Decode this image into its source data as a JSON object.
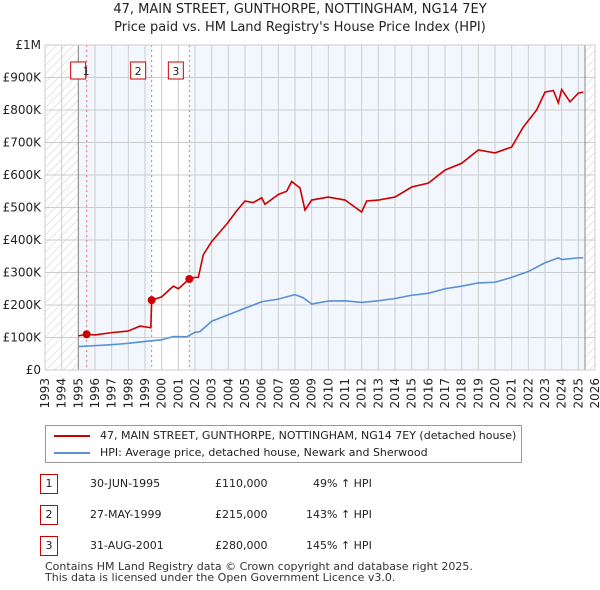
{
  "chart_data": {
    "type": "line",
    "title": "47, MAIN STREET, GUNTHORPE, NOTTINGHAM, NG14 7EY",
    "subtitle": "Price paid vs. HM Land Registry's House Price Index (HPI)",
    "xlim": [
      1993,
      2026
    ],
    "ylim": [
      0,
      1000000
    ],
    "x_ticks": [
      "1993",
      "1994",
      "1995",
      "1996",
      "1997",
      "1998",
      "1999",
      "2000",
      "2001",
      "2002",
      "2003",
      "2004",
      "2005",
      "2006",
      "2007",
      "2008",
      "2009",
      "2010",
      "2011",
      "2012",
      "2013",
      "2014",
      "2015",
      "2016",
      "2017",
      "2018",
      "2019",
      "2020",
      "2021",
      "2022",
      "2023",
      "2024",
      "2025",
      "2026"
    ],
    "y_ticks": [
      {
        "v": 0,
        "label": "£0"
      },
      {
        "v": 100000,
        "label": "£100K"
      },
      {
        "v": 200000,
        "label": "£200K"
      },
      {
        "v": 300000,
        "label": "£300K"
      },
      {
        "v": 400000,
        "label": "£400K"
      },
      {
        "v": 500000,
        "label": "£500K"
      },
      {
        "v": 600000,
        "label": "£600K"
      },
      {
        "v": 700000,
        "label": "£700K"
      },
      {
        "v": 800000,
        "label": "£800K"
      },
      {
        "v": 900000,
        "label": "£900K"
      },
      {
        "v": 1000000,
        "label": "£1M"
      }
    ],
    "grid": true,
    "series": [
      {
        "name": "47, MAIN STREET, GUNTHORPE, NOTTINGHAM, NG14 7EY (detached house)",
        "color": "#cc0000",
        "x": [
          1995.0,
          1995.5,
          1996,
          1997,
          1998,
          1998.7,
          1999.35,
          1999.4,
          2000,
          2000.7,
          2001,
          2001.66,
          2002,
          2002.2,
          2002.5,
          2003,
          2003.5,
          2004,
          2004.5,
          2005,
          2005.5,
          2006,
          2006.2,
          2007,
          2007.5,
          2007.8,
          2008.3,
          2008.6,
          2009,
          2010,
          2011,
          2012,
          2012.3,
          2013,
          2014,
          2015,
          2016,
          2017,
          2018,
          2019,
          2020,
          2021,
          2021.7,
          2022.5,
          2023,
          2023.5,
          2023.8,
          2024,
          2024.5,
          2025,
          2025.3
        ],
        "y": [
          105000,
          110000,
          108000,
          115000,
          120000,
          135000,
          130000,
          215000,
          225000,
          258000,
          250000,
          280000,
          285000,
          285000,
          355000,
          395000,
          425000,
          455000,
          490000,
          520000,
          515000,
          530000,
          510000,
          540000,
          550000,
          580000,
          560000,
          492000,
          523000,
          532000,
          523000,
          486000,
          520000,
          523000,
          532000,
          563000,
          575000,
          615000,
          636000,
          677000,
          668000,
          686000,
          748000,
          800000,
          855000,
          860000,
          822000,
          863000,
          825000,
          852000,
          855000
        ]
      },
      {
        "name": "HPI: Average price, detached house, Newark and Sherwood",
        "color": "#5b8fd6",
        "x": [
          1995,
          1996,
          1997,
          1998,
          1999,
          2000,
          2000.7,
          2001.5,
          2002,
          2002.3,
          2003,
          2004,
          2005,
          2006,
          2007,
          2008,
          2008.5,
          2009,
          2010,
          2011,
          2012,
          2013,
          2014,
          2015,
          2016,
          2017,
          2018,
          2019,
          2020,
          2021,
          2022,
          2023,
          2023.8,
          2024,
          2025,
          2025.3
        ],
        "y": [
          72000,
          75000,
          78000,
          82000,
          88000,
          93000,
          103000,
          102000,
          116000,
          118000,
          150000,
          170000,
          190000,
          210000,
          218000,
          232000,
          222000,
          203000,
          212000,
          213000,
          208000,
          213000,
          220000,
          230000,
          236000,
          250000,
          258000,
          268000,
          270000,
          285000,
          303000,
          330000,
          345000,
          340000,
          345000,
          345000
        ]
      }
    ],
    "sales": [
      {
        "n": "1",
        "x": 1995.5,
        "date": "30-JUN-1995",
        "price": "£110,000",
        "value": 110000,
        "hpi": "49% ↑ HPI"
      },
      {
        "n": "2",
        "x": 1999.4,
        "date": "27-MAY-1999",
        "price": "£215,000",
        "value": 215000,
        "hpi": "143% ↑ HPI"
      },
      {
        "n": "3",
        "x": 2001.66,
        "date": "31-AUG-2001",
        "price": "£280,000",
        "value": 280000,
        "hpi": "145% ↑ HPI"
      }
    ],
    "data_start": 1995,
    "data_end": 2025.4
  },
  "footer": [
    "Contains HM Land Registry data © Crown copyright and database right 2025.",
    "This data is licensed under the Open Government Licence v3.0."
  ]
}
